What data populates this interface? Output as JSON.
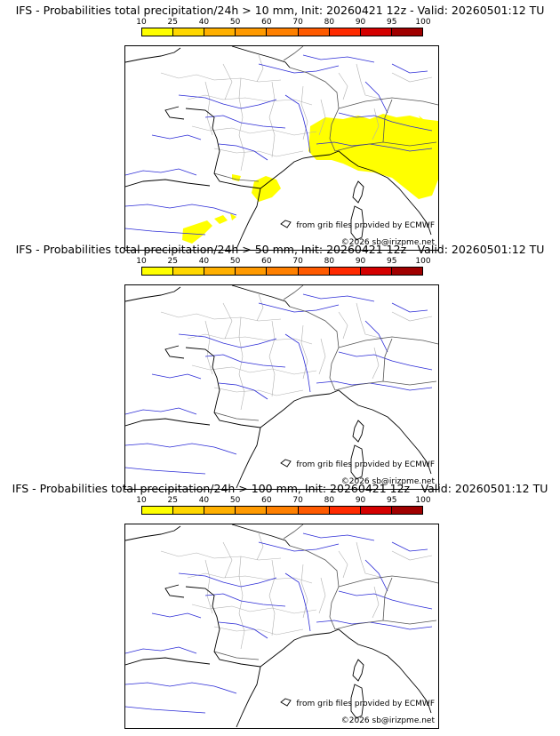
{
  "colorbar": {
    "ticks": [
      "10",
      "25",
      "40",
      "50",
      "60",
      "70",
      "80",
      "90",
      "95",
      "100"
    ],
    "colors": [
      "#ffff00",
      "#ffd700",
      "#ffb000",
      "#ff9a00",
      "#ff8000",
      "#ff5a00",
      "#ff2a00",
      "#d40000",
      "#a00000",
      "#700000"
    ]
  },
  "panels": [
    {
      "title": "IFS - Probabilities total precipitation/24h > 10 mm, Init: 20260421 12z - Valid: 20260501:12 TU",
      "precip_fill": "#ffff00"
    },
    {
      "title": "IFS - Probabilities total precipitation/24h > 50 mm, Init: 20260421 12z - Valid: 20260501:12 TU"
    },
    {
      "title": "IFS - Probabilities total precipitation/24h > 100 mm, Init: 20260421 12z - Valid: 20260501:12 TU"
    }
  ],
  "credits": {
    "source": "from grib files provided by ECMWF",
    "copyright": "©2026 sb@irizpme.net"
  }
}
